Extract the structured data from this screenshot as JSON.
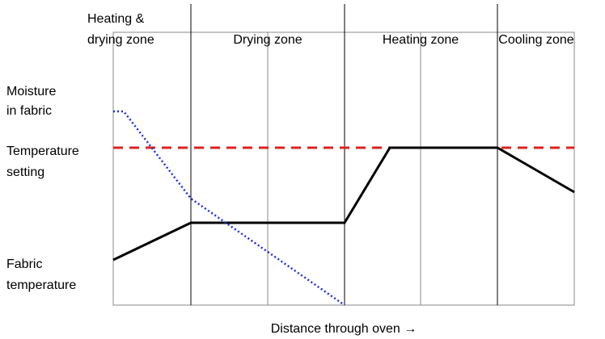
{
  "zones": [
    {
      "label": [
        "Heating &",
        "drying zone"
      ]
    },
    {
      "label": [
        "Drying zone"
      ]
    },
    {
      "label": [
        "Heating zone"
      ]
    },
    {
      "label": [
        "Cooling zone"
      ]
    }
  ],
  "curves": [
    {
      "label": [
        "Moisture",
        "in fabric"
      ]
    },
    {
      "label": [
        "Temperature",
        "setting"
      ]
    },
    {
      "label": [
        "Fabric",
        "temperature"
      ]
    }
  ],
  "x_axis_label": "Distance through oven →"
}
